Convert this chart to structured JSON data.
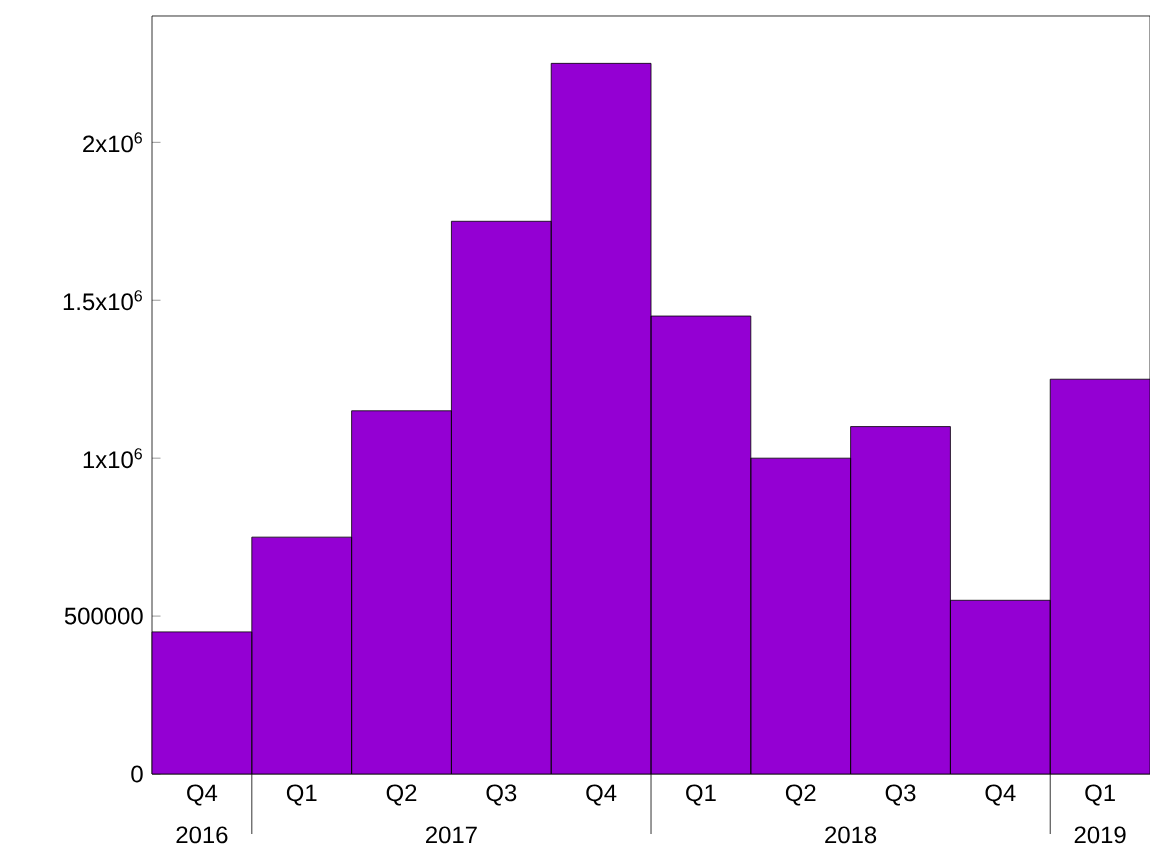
{
  "chart_data": {
    "type": "bar",
    "categories": [
      "Q4",
      "Q1",
      "Q2",
      "Q3",
      "Q4",
      "Q1",
      "Q2",
      "Q3",
      "Q4",
      "Q1"
    ],
    "values": [
      450000,
      750000,
      1150000,
      1750000,
      2250000,
      1450000,
      1000000,
      1100000,
      550000,
      1250000
    ],
    "color": "#9400d3",
    "ylim": [
      0,
      2400000
    ],
    "yticks": [
      0,
      500000,
      {
        "value": 1000000,
        "label": "1x10$^{6}$"
      },
      {
        "value": 1500000,
        "label": "1.5x10$^{6}$"
      },
      {
        "value": 2000000,
        "label": "2x10$^{6}$"
      }
    ],
    "annotations": [
      "2016",
      "2017",
      "2018",
      "2019"
    ]
  }
}
